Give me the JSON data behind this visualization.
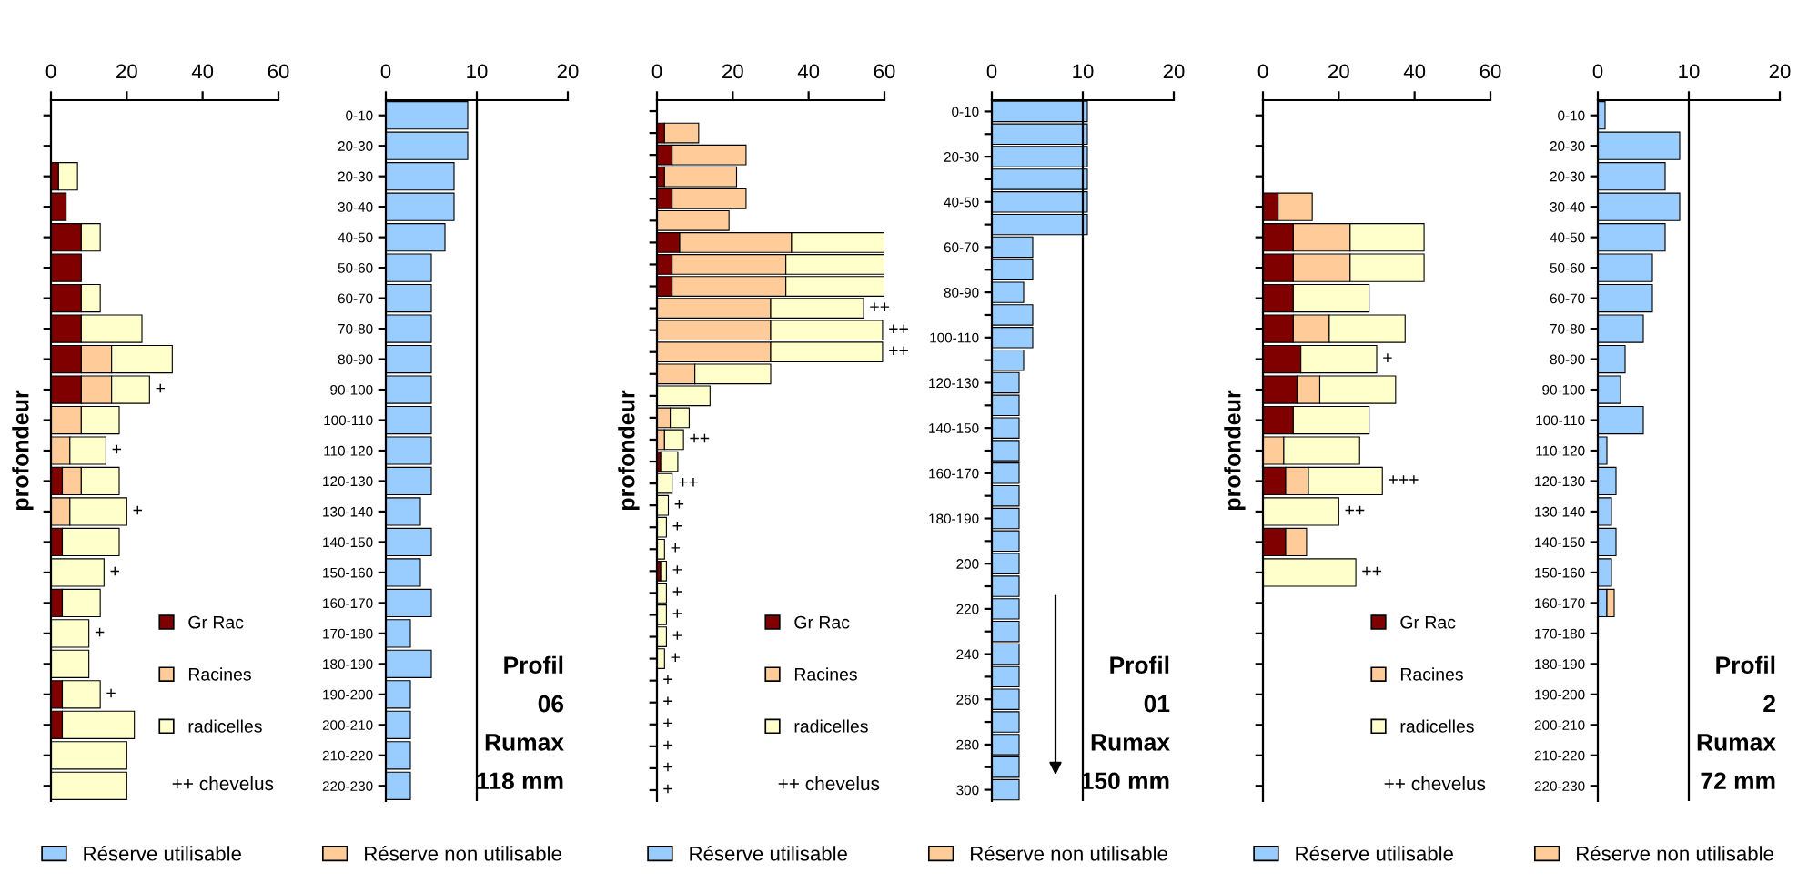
{
  "chart_data": [
    {
      "type": "bar",
      "orientation": "horizontal",
      "stacked": true,
      "ylabel": "profondeur",
      "tick_labels": "x",
      "xlim": [
        0,
        60
      ],
      "xticks": [
        0,
        20,
        40,
        60
      ],
      "legend": "bottom right",
      "annotations": [
        "++ chevelus"
      ],
      "categories": [
        null,
        null,
        null,
        null,
        null,
        null,
        null,
        null,
        null,
        null,
        null,
        null,
        null,
        null,
        null,
        null,
        null,
        null,
        null,
        null,
        null,
        null,
        null
      ],
      "series": [
        {
          "name": "Gr Rac",
          "color": "#800000",
          "values": [
            null,
            null,
            2,
            4,
            8,
            8,
            8,
            8,
            8,
            8,
            null,
            null,
            3,
            null,
            3,
            null,
            3,
            null,
            null,
            3,
            3,
            null,
            null
          ]
        },
        {
          "name": "Racines",
          "color": "#ffcc99",
          "values": [
            null,
            null,
            null,
            null,
            null,
            null,
            null,
            null,
            8,
            8,
            8,
            5,
            5,
            5,
            null,
            null,
            null,
            null,
            null,
            null,
            null,
            null,
            null
          ]
        },
        {
          "name": "radicelles",
          "color": "#ffffcc",
          "values": [
            null,
            null,
            5,
            null,
            5,
            null,
            5,
            16,
            16,
            10,
            10,
            9.5,
            10,
            15,
            15,
            14,
            10,
            10,
            10,
            10,
            19,
            20,
            20
          ],
          "value_labels": [
            null,
            null,
            null,
            null,
            null,
            null,
            null,
            null,
            null,
            "+",
            null,
            "+",
            null,
            "+",
            null,
            "+",
            null,
            "+",
            null,
            "+",
            null,
            null,
            null
          ]
        }
      ]
    },
    {
      "type": "bar",
      "orientation": "horizontal",
      "stacked": true,
      "xlim": [
        0,
        20
      ],
      "xticks": [
        0,
        10,
        20
      ],
      "legend": "bottom",
      "ref_lines": [
        {
          "axis": "x",
          "value": 10,
          "color": "#000000"
        }
      ],
      "annotations": [
        "Profil",
        "06",
        "Rumax",
        "118 mm"
      ],
      "categories": [
        "0-10",
        "20-30",
        "20-30",
        "30-40",
        "40-50",
        "50-60",
        "60-70",
        "70-80",
        "80-90",
        "90-100",
        "100-110",
        "110-120",
        "120-130",
        "130-140",
        "140-150",
        "150-160",
        "160-170",
        "170-180",
        "180-190",
        "190-200",
        "200-210",
        "210-220",
        "220-230"
      ],
      "series": [
        {
          "name": "Réserve utilisable",
          "color": "#99ccff",
          "values": [
            9,
            9,
            7.5,
            7.5,
            6.5,
            5,
            5,
            5,
            5,
            5,
            5,
            5,
            5,
            3.8,
            5,
            3.8,
            5,
            2.7,
            5,
            2.7,
            2.7,
            2.7,
            2.7
          ]
        },
        {
          "name": "Réserve non utilisable",
          "color": "#ffcc99",
          "values": [
            null,
            null,
            null,
            null,
            null,
            null,
            null,
            null,
            null,
            null,
            null,
            null,
            null,
            null,
            null,
            null,
            null,
            null,
            null,
            null,
            null,
            null,
            null
          ]
        }
      ]
    },
    {
      "type": "bar",
      "orientation": "horizontal",
      "stacked": true,
      "ylabel": "profondeur",
      "tick_labels": "x",
      "xlim": [
        0,
        60
      ],
      "xticks": [
        0,
        20,
        40,
        60
      ],
      "legend": "bottom right",
      "annotations": [
        "++ chevelus"
      ],
      "categories": [
        null,
        null,
        null,
        null,
        null,
        null,
        null,
        null,
        null,
        null,
        null,
        null,
        null,
        null,
        null,
        null,
        null,
        null,
        null,
        null,
        null,
        null,
        null,
        null,
        null,
        null,
        null,
        null,
        null,
        null,
        null,
        null
      ],
      "series": [
        {
          "name": "Gr Rac",
          "color": "#800000",
          "values": [
            null,
            2,
            4,
            2,
            4,
            null,
            6,
            4,
            4,
            null,
            null,
            null,
            null,
            null,
            null,
            null,
            1,
            null,
            null,
            null,
            null,
            1,
            null,
            null,
            null,
            null,
            null,
            null,
            null,
            null,
            null,
            null
          ]
        },
        {
          "name": "Racines",
          "color": "#ffcc99",
          "values": [
            null,
            9,
            19.5,
            19,
            19.5,
            19,
            29.5,
            30,
            30,
            30,
            30,
            30,
            10,
            null,
            3.5,
            2,
            null,
            null,
            null,
            null,
            null,
            null,
            null,
            null,
            null,
            null,
            null,
            null,
            null,
            null,
            null,
            null
          ]
        },
        {
          "name": "radicelles",
          "color": "#ffffcc",
          "values": [
            null,
            null,
            null,
            null,
            null,
            null,
            24.5,
            26,
            26,
            24.5,
            29.5,
            29.5,
            20,
            14,
            5,
            5,
            4.5,
            4,
            3,
            2.5,
            2,
            1.5,
            2.5,
            2.5,
            2.5,
            2,
            null,
            null,
            null,
            null,
            null,
            null
          ],
          "value_labels": [
            null,
            null,
            null,
            null,
            null,
            null,
            null,
            null,
            null,
            "++",
            "++",
            "++",
            null,
            null,
            null,
            "++",
            null,
            "++",
            "+",
            "+",
            "+",
            "+",
            "+",
            "+",
            "+",
            "+",
            "+",
            "+",
            "+",
            "+",
            "+",
            "+"
          ]
        }
      ]
    },
    {
      "type": "bar",
      "orientation": "horizontal",
      "stacked": true,
      "xlim": [
        0,
        20
      ],
      "xticks": [
        0,
        10,
        20
      ],
      "legend": "bottom",
      "ref_lines": [
        {
          "axis": "x",
          "value": 10,
          "color": "#000000"
        }
      ],
      "annotations": [
        "Profil",
        "01",
        "Rumax",
        "150 mm"
      ],
      "categories": [
        "0-10",
        null,
        "20-30",
        null,
        "40-50",
        null,
        "60-70",
        null,
        "80-90",
        null,
        "100-110",
        null,
        "120-130",
        null,
        "140-150",
        null,
        "160-170",
        null,
        "180-190",
        null,
        "200",
        null,
        "220",
        null,
        "240",
        null,
        "260",
        null,
        "280",
        null,
        "300"
      ],
      "series": [
        {
          "name": "Réserve utilisable",
          "color": "#99ccff",
          "values": [
            10.5,
            10.5,
            10.5,
            10.5,
            10.5,
            10.5,
            4.5,
            4.5,
            3.5,
            4.5,
            4.5,
            3.5,
            3,
            3,
            3,
            3,
            3,
            3,
            3,
            3,
            3,
            3,
            3,
            3,
            3,
            3,
            3,
            3,
            3,
            3,
            3
          ]
        },
        {
          "name": "Réserve non utilisable",
          "color": "#ffcc99",
          "values": [
            null,
            null,
            null,
            null,
            null,
            null,
            null,
            null,
            null,
            null,
            null,
            null,
            null,
            null,
            null,
            null,
            null,
            null,
            null,
            null,
            null,
            null,
            null,
            null,
            null,
            null,
            null,
            null,
            null,
            null,
            null
          ]
        }
      ]
    },
    {
      "type": "bar",
      "orientation": "horizontal",
      "stacked": true,
      "ylabel": "profondeur",
      "tick_labels": "x",
      "xlim": [
        0,
        60
      ],
      "xticks": [
        0,
        20,
        40,
        60
      ],
      "legend": "bottom right",
      "annotations": [
        "++ chevelus"
      ],
      "categories": [
        null,
        null,
        null,
        null,
        null,
        null,
        null,
        null,
        null,
        null,
        null,
        null,
        null,
        null,
        null,
        null,
        null,
        null,
        null,
        null,
        null,
        null,
        null
      ],
      "series": [
        {
          "name": "Gr Rac",
          "color": "#800000",
          "values": [
            null,
            null,
            null,
            4,
            8,
            8,
            8,
            8,
            10,
            9,
            8,
            null,
            6,
            null,
            6,
            null,
            null,
            null,
            null,
            null,
            null,
            null,
            null
          ]
        },
        {
          "name": "Racines",
          "color": "#ffcc99",
          "values": [
            null,
            null,
            null,
            9,
            15,
            15,
            null,
            9.5,
            null,
            6,
            null,
            5.5,
            6,
            null,
            5.5,
            null,
            null,
            null,
            null,
            null,
            null,
            null,
            null
          ]
        },
        {
          "name": "radicelles",
          "color": "#ffffcc",
          "values": [
            null,
            null,
            null,
            null,
            19.5,
            19.5,
            20,
            20,
            20,
            20,
            20,
            20,
            19.5,
            20,
            null,
            24.5,
            null,
            null,
            null,
            null,
            null,
            null,
            null
          ],
          "value_labels": [
            null,
            null,
            null,
            null,
            null,
            null,
            null,
            null,
            "+",
            null,
            null,
            null,
            "+++",
            "++",
            null,
            "++",
            null,
            null,
            null,
            null,
            null,
            null,
            null
          ]
        }
      ]
    },
    {
      "type": "bar",
      "orientation": "horizontal",
      "stacked": true,
      "xlim": [
        0,
        20
      ],
      "xticks": [
        0,
        10,
        20
      ],
      "legend": "bottom",
      "ref_lines": [
        {
          "axis": "x",
          "value": 10,
          "color": "#000000"
        }
      ],
      "annotations": [
        "Profil",
        "2",
        "Rumax",
        "72 mm"
      ],
      "categories": [
        "0-10",
        "20-30",
        "20-30",
        "30-40",
        "40-50",
        "50-60",
        "60-70",
        "70-80",
        "80-90",
        "90-100",
        "100-110",
        "110-120",
        "120-130",
        "130-140",
        "140-150",
        "150-160",
        "160-170",
        "170-180",
        "180-190",
        "190-200",
        "200-210",
        "210-220",
        "220-230"
      ],
      "series": [
        {
          "name": "Réserve utilisable",
          "color": "#99ccff",
          "values": [
            0.8,
            9,
            7.4,
            9,
            7.4,
            6,
            6,
            5,
            3,
            2.5,
            5,
            1,
            2,
            1.5,
            2,
            1.5,
            1,
            null,
            null,
            null,
            null,
            null,
            null
          ]
        },
        {
          "name": "Réserve non utilisable",
          "color": "#ffcc99",
          "values": [
            null,
            null,
            null,
            null,
            null,
            null,
            null,
            null,
            null,
            null,
            null,
            null,
            null,
            null,
            null,
            null,
            0.8,
            null,
            null,
            null,
            null,
            null,
            null
          ]
        }
      ]
    }
  ]
}
